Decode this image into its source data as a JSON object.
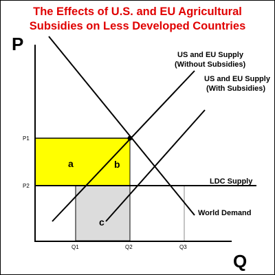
{
  "title": {
    "line1": "The Effects of U.S. and EU Agricultural",
    "line2": "Subsidies on Less Developed Countries"
  },
  "axes": {
    "y_label": "P",
    "x_label": "Q",
    "y_ticks": [
      "P1",
      "P2"
    ],
    "x_ticks": [
      "Q1",
      "Q2",
      "Q3"
    ]
  },
  "curves": {
    "supply_without_line1": "US and EU Supply",
    "supply_without_line2": "(Without Subsidies)",
    "supply_with_line1": "US and EU Supply",
    "supply_with_line2": "(With Subsidies)",
    "ldc_supply": "LDC Supply",
    "world_demand": "World Demand"
  },
  "areas": {
    "a": "a",
    "b": "b",
    "c": "c"
  },
  "colors": {
    "title": "#e00000",
    "area_ab": "#ffff00",
    "area_c": "#dcdcdc",
    "lines": "#000000"
  }
}
